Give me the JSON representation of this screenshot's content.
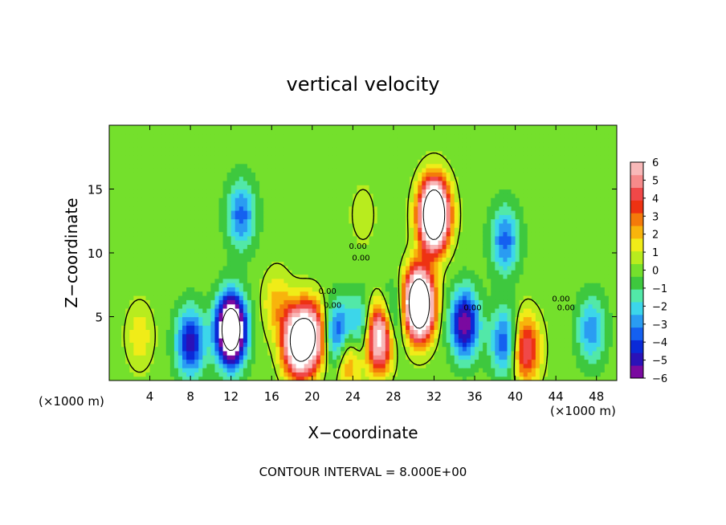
{
  "title": "vertical velocity",
  "footer": "CONTOUR INTERVAL = 8.000E+00",
  "chart_data": {
    "type": "heatmap",
    "title": "vertical velocity",
    "xlabel": "X−coordinate",
    "ylabel": "Z−coordinate",
    "x_unit_left": "(×1000 m)",
    "x_unit_right": "(×1000 m)",
    "xlim": [
      0,
      50
    ],
    "ylim": [
      0,
      20
    ],
    "x_ticks": [
      "4",
      "8",
      "12",
      "16",
      "20",
      "24",
      "28",
      "32",
      "36",
      "40",
      "44",
      "48"
    ],
    "y_ticks": [
      "5",
      "10",
      "15"
    ],
    "colorbar": {
      "range": [
        -6,
        6
      ],
      "tick_labels": [
        "6",
        "5",
        "4",
        "3",
        "2",
        "1",
        "0",
        "−1",
        "−2",
        "−3",
        "−4",
        "−5",
        "−6"
      ],
      "colors": [
        "#7a0aa0",
        "#2a12b8",
        "#0a2ad8",
        "#1460f0",
        "#2a9cf2",
        "#3cd6ea",
        "#52e8a8",
        "#3ec83e",
        "#74e02c",
        "#b8ec1e",
        "#f0ec18",
        "#f8b40c",
        "#f47a0a",
        "#ee3212",
        "#f04848",
        "#f68a8a",
        "#f8b8b8"
      ]
    },
    "contour_interval": "8.000E+00",
    "contour_labels": [
      "0.00",
      "0.00",
      "0.00",
      "0.00",
      "0.00",
      "0.00",
      "0.00"
    ],
    "features": [
      {
        "x": 12.0,
        "z": 4.0,
        "w": -12
      },
      {
        "x": 8.0,
        "z": 3.0,
        "w": -5
      },
      {
        "x": 13.0,
        "z": 13.0,
        "w": -3.5
      },
      {
        "x": 18.5,
        "z": 3.0,
        "w": 9
      },
      {
        "x": 20.0,
        "z": 3.5,
        "w": 7
      },
      {
        "x": 16.5,
        "z": 6.0,
        "w": 2
      },
      {
        "x": 22.5,
        "z": 3.5,
        "w": -5
      },
      {
        "x": 23.5,
        "z": 2.0,
        "w": 4
      },
      {
        "x": 26.5,
        "z": 3.5,
        "w": 9
      },
      {
        "x": 25.0,
        "z": 4.0,
        "w": -4
      },
      {
        "x": 30.5,
        "z": 6.0,
        "w": 14
      },
      {
        "x": 32.0,
        "z": 13.0,
        "w": 14
      },
      {
        "x": 28.0,
        "z": 5.0,
        "w": -3
      },
      {
        "x": 35.0,
        "z": 4.5,
        "w": -6
      },
      {
        "x": 39.0,
        "z": 3.0,
        "w": -4
      },
      {
        "x": 39.0,
        "z": 11.0,
        "w": -3.5
      },
      {
        "x": 41.0,
        "z": 2.5,
        "w": 5
      },
      {
        "x": 47.5,
        "z": 4.0,
        "w": -3
      },
      {
        "x": 3.0,
        "z": 3.5,
        "w": 1.5
      },
      {
        "x": 25.0,
        "z": 13.0,
        "w": 0.8
      }
    ]
  }
}
